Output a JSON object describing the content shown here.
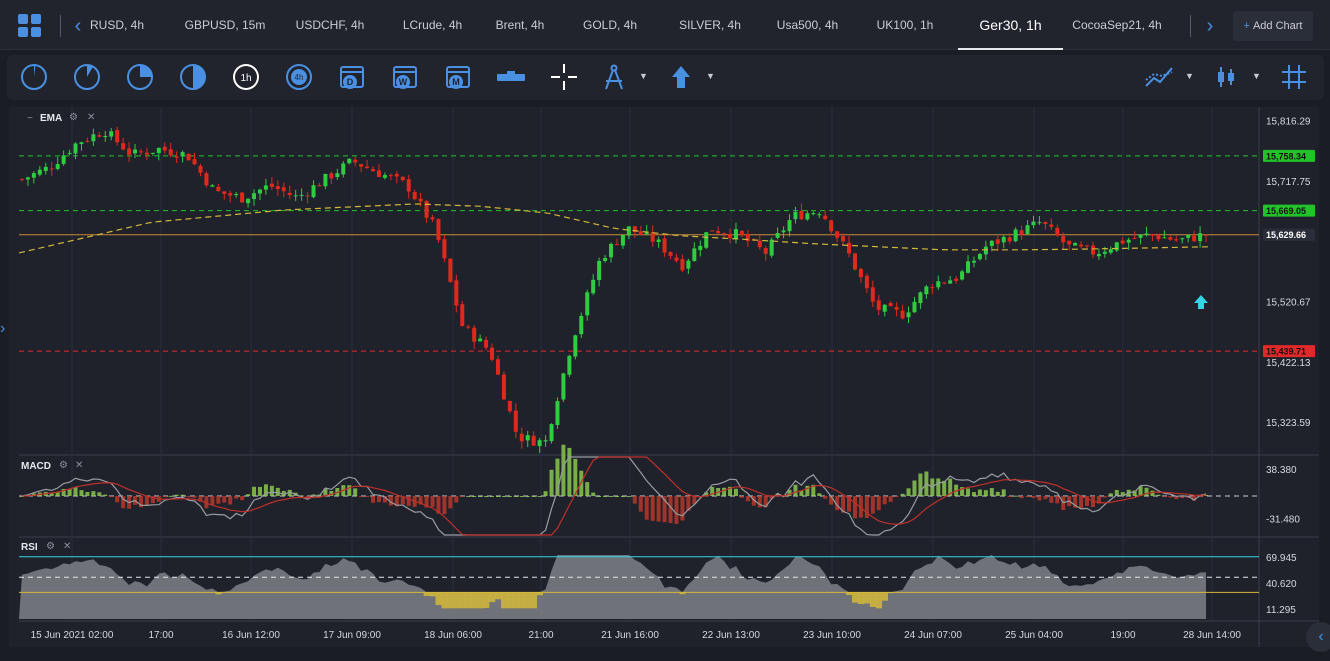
{
  "tabs": [
    {
      "label": "RUSD, 4h",
      "active": false
    },
    {
      "label": "GBPUSD, 15m",
      "active": false
    },
    {
      "label": "USDCHF, 4h",
      "active": false
    },
    {
      "label": "LCrude, 4h",
      "active": false
    },
    {
      "label": "Brent, 4h",
      "active": false
    },
    {
      "label": "GOLD, 4h",
      "active": false
    },
    {
      "label": "SILVER, 4h",
      "active": false
    },
    {
      "label": "Usa500, 4h",
      "active": false
    },
    {
      "label": "UK100, 1h",
      "active": false
    },
    {
      "label": "Ger30, 1h",
      "active": true
    },
    {
      "label": "CocoaSep21, 4h",
      "active": false
    }
  ],
  "add_chart_label": "Add Chart",
  "toolbar": {
    "timeframe_icons": [
      "1m",
      "5m",
      "15m",
      "30m",
      "1h",
      "4h",
      "D",
      "W",
      "M"
    ],
    "tools": [
      "range-bar-icon",
      "crosshair-icon",
      "drawing-compass-icon",
      "arrow-up-icon",
      "indicators-icon",
      "chart-type-icon",
      "grid-icon"
    ]
  },
  "indicators": {
    "ema_label": "EMA",
    "macd_label": "MACD",
    "rsi_label": "RSI"
  },
  "colors": {
    "up": "#2ecc40",
    "down": "#e0291c",
    "accent": "#4a90e2",
    "ema": "#d4b83a",
    "hline_green": "#22c32a",
    "hline_red": "#e02a2a",
    "hline_orange": "#c8893a",
    "arrow": "#34d3e6"
  },
  "chart_data": {
    "type": "candlestick",
    "symbol": "Ger30",
    "timeframe": "1h",
    "x_labels": [
      "15 Jun 2021 02:00",
      "17:00",
      "16 Jun 12:00",
      "17 Jun 09:00",
      "18 Jun 06:00",
      "21:00",
      "21 Jun 16:00",
      "22 Jun 13:00",
      "23 Jun 10:00",
      "24 Jun 07:00",
      "25 Jun 04:00",
      "19:00",
      "28 Jun 14:00"
    ],
    "price_axis": [
      "15,816.29",
      "15,717.75",
      "15,520.67",
      "15,422.13",
      "15,323.59"
    ],
    "ylim": [
      15275,
      15830
    ],
    "close_path": [
      15720,
      15740,
      15780,
      15800,
      15760,
      15770,
      15760,
      15700,
      15690,
      15710,
      15690,
      15720,
      15750,
      15730,
      15710,
      15640,
      15480,
      15440,
      15300,
      15290,
      15460,
      15590,
      15640,
      15620,
      15580,
      15640,
      15630,
      15600,
      15660,
      15670,
      15600,
      15510,
      15500,
      15550,
      15560,
      15610,
      15630,
      15650,
      15610,
      15600,
      15620,
      15630,
      15620,
      15630
    ],
    "horizontal_lines": [
      {
        "label": "15,758.34",
        "value": 15758.34,
        "color": "green",
        "style": "dashed"
      },
      {
        "label": "15,669.05",
        "value": 15669.05,
        "color": "green",
        "style": "dashed"
      },
      {
        "label": "15,629.66",
        "value": 15629.66,
        "color": "orange",
        "style": "solid"
      },
      {
        "label": "15,439.71",
        "value": 15439.71,
        "color": "red",
        "style": "dashed"
      }
    ],
    "ema_path": [
      15600,
      15625,
      15650,
      15660,
      15670,
      15675,
      15680,
      15676,
      15665,
      15640,
      15628,
      15622,
      15615,
      15610,
      15605,
      15605,
      15606,
      15608,
      15610
    ],
    "macd": {
      "axis": [
        "38.380",
        "-31.480"
      ],
      "ylim": [
        -55,
        55
      ]
    },
    "rsi": {
      "axis": [
        "69.945",
        "40.620",
        "11.295"
      ],
      "ylim": [
        0,
        90
      ],
      "levels": [
        70,
        30
      ]
    }
  }
}
